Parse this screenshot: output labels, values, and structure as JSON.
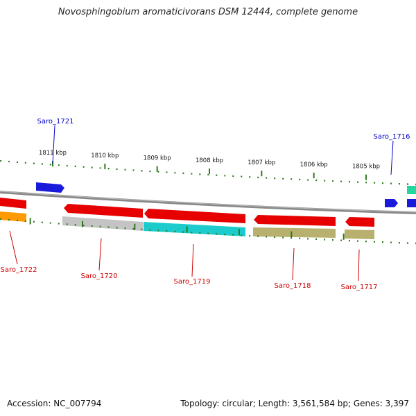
{
  "title": "Novosphingobium aromaticivorans DSM 12444, complete genome",
  "footer": {
    "accession": "Accession: NC_007794",
    "summary": "Topology: circular; Length: 3,561,584 bp; Genes: 3,397"
  },
  "colors": {
    "forward_label": "#0000cc",
    "reverse_label": "#cc0000",
    "backbone": "#777777",
    "tick": "#2d7a1e"
  },
  "scale": {
    "unit": "kbp",
    "ticks": [
      {
        "kbp": 1811,
        "label": "1811 kbp"
      },
      {
        "kbp": 1810,
        "label": "1810 kbp"
      },
      {
        "kbp": 1809,
        "label": "1809 kbp"
      },
      {
        "kbp": 1808,
        "label": "1808 kbp"
      },
      {
        "kbp": 1807,
        "label": "1807 kbp"
      },
      {
        "kbp": 1806,
        "label": "1806 kbp"
      },
      {
        "kbp": 1805,
        "label": "1805 kbp"
      }
    ]
  },
  "genes": [
    {
      "name": "Saro_1721",
      "strand": "forward"
    },
    {
      "name": "Saro_1716",
      "strand": "forward"
    },
    {
      "name": "Saro_1722",
      "strand": "reverse"
    },
    {
      "name": "Saro_1720",
      "strand": "reverse"
    },
    {
      "name": "Saro_1719",
      "strand": "reverse"
    },
    {
      "name": "Saro_1718",
      "strand": "reverse"
    },
    {
      "name": "Saro_1717",
      "strand": "reverse"
    }
  ]
}
